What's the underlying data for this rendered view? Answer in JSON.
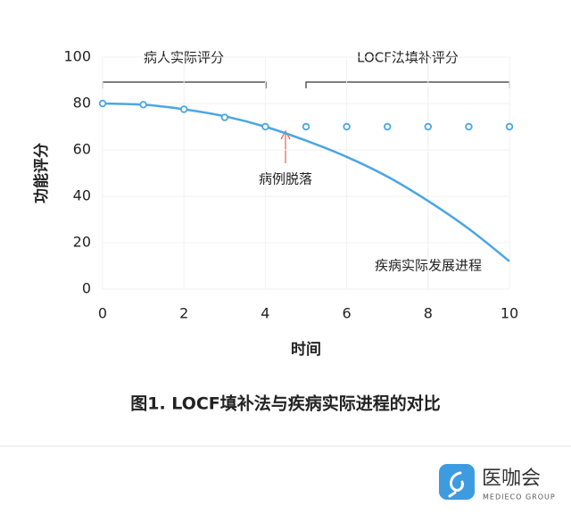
{
  "chart_data": {
    "type": "line",
    "caption": "图1. LOCF填补法与疾病实际进程的对比",
    "x_label": "时间",
    "y_label": "功能评分",
    "x": [
      0,
      1,
      2,
      3,
      4,
      5,
      6,
      7,
      8,
      9,
      10
    ],
    "series": [
      {
        "name": "疾病实际发展进程",
        "color": "#4ba6e2",
        "mode": "line",
        "values": [
          80,
          79.5,
          77.5,
          74.5,
          70,
          64,
          57,
          48.5,
          38,
          26,
          12
        ]
      },
      {
        "name": "病人实际评分",
        "color": "#4ba6e2",
        "mode": "markers",
        "values": [
          80,
          79.5,
          77.5,
          74,
          70,
          null,
          null,
          null,
          null,
          null,
          null
        ]
      },
      {
        "name": "LOCF法填补评分",
        "color": "#4ba6e2",
        "mode": "markers",
        "values": [
          null,
          null,
          null,
          null,
          null,
          70,
          70,
          70,
          70,
          70,
          70
        ]
      }
    ],
    "annotations": {
      "dropout": "病例脱落"
    },
    "xlim": [
      0,
      10
    ],
    "xticks": [
      0,
      2,
      4,
      6,
      8,
      10
    ],
    "ylim": [
      0,
      100
    ],
    "yticks": [
      0,
      20,
      40,
      60,
      80,
      100
    ],
    "grid": true
  },
  "logo": {
    "name": "医咖会",
    "sub": "MEDIECO GROUP"
  }
}
